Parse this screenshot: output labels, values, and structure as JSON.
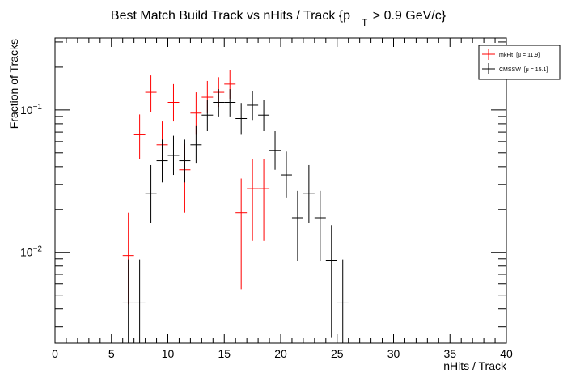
{
  "chart_data": {
    "type": "scatter",
    "title_main": "Best Match Build Track vs nHits / Track {p",
    "title_sub": "T",
    "title_tail": " > 0.9 GeV/c}",
    "xlabel": "nHits / Track",
    "ylabel": "Fraction of Tracks",
    "xlim": [
      0,
      40
    ],
    "ylim": [
      0.0023,
      0.32
    ],
    "log_y": true,
    "grid": false,
    "legend_position": "top-right",
    "x_ticks": [
      0,
      5,
      10,
      15,
      20,
      25,
      30,
      35,
      40
    ],
    "x_tick_labels": [
      "0",
      "5",
      "10",
      "15",
      "20",
      "25",
      "30",
      "35",
      "40"
    ],
    "y_major_ticks": [
      {
        "value": 0.1,
        "base": "10",
        "exp": "−1"
      },
      {
        "value": 0.01,
        "base": "10",
        "exp": "−2"
      }
    ],
    "series": [
      {
        "name": "mkFit",
        "legend_stat": "[μ = 11.9]",
        "color": "#ff0000",
        "points": [
          {
            "x": 6.5,
            "y": 0.0095,
            "lo": 0.0043,
            "hi": 0.019
          },
          {
            "x": 7.5,
            "y": 0.067,
            "lo": 0.045,
            "hi": 0.093
          },
          {
            "x": 8.5,
            "y": 0.133,
            "lo": 0.097,
            "hi": 0.175
          },
          {
            "x": 9.5,
            "y": 0.057,
            "lo": 0.038,
            "hi": 0.083
          },
          {
            "x": 10.5,
            "y": 0.113,
            "lo": 0.083,
            "hi": 0.152
          },
          {
            "x": 11.5,
            "y": 0.038,
            "lo": 0.019,
            "hi": 0.058
          },
          {
            "x": 12.5,
            "y": 0.095,
            "lo": 0.067,
            "hi": 0.133
          },
          {
            "x": 13.5,
            "y": 0.123,
            "lo": 0.095,
            "hi": 0.16
          },
          {
            "x": 14.5,
            "y": 0.133,
            "lo": 0.105,
            "hi": 0.17
          },
          {
            "x": 15.5,
            "y": 0.152,
            "lo": 0.12,
            "hi": 0.19
          },
          {
            "x": 16.5,
            "y": 0.019,
            "lo": 0.0055,
            "hi": 0.033
          },
          {
            "x": 17.5,
            "y": 0.028,
            "lo": 0.012,
            "hi": 0.045
          },
          {
            "x": 18.5,
            "y": 0.028,
            "lo": 0.012,
            "hi": 0.045
          }
        ]
      },
      {
        "name": "CMSSW",
        "legend_stat": "[μ = 15.1]",
        "color": "#000000",
        "points": [
          {
            "x": 6.5,
            "y": 0.0044,
            "lo": 0.0021,
            "hi": 0.0089
          },
          {
            "x": 7.5,
            "y": 0.0044,
            "lo": 0.0021,
            "hi": 0.0089
          },
          {
            "x": 8.5,
            "y": 0.026,
            "lo": 0.016,
            "hi": 0.041
          },
          {
            "x": 9.5,
            "y": 0.044,
            "lo": 0.031,
            "hi": 0.062
          },
          {
            "x": 10.5,
            "y": 0.048,
            "lo": 0.035,
            "hi": 0.066
          },
          {
            "x": 11.5,
            "y": 0.044,
            "lo": 0.031,
            "hi": 0.062
          },
          {
            "x": 12.5,
            "y": 0.057,
            "lo": 0.042,
            "hi": 0.077
          },
          {
            "x": 13.5,
            "y": 0.092,
            "lo": 0.071,
            "hi": 0.118
          },
          {
            "x": 14.5,
            "y": 0.113,
            "lo": 0.09,
            "hi": 0.14
          },
          {
            "x": 15.5,
            "y": 0.113,
            "lo": 0.09,
            "hi": 0.14
          },
          {
            "x": 16.5,
            "y": 0.087,
            "lo": 0.067,
            "hi": 0.112
          },
          {
            "x": 17.5,
            "y": 0.108,
            "lo": 0.085,
            "hi": 0.135
          },
          {
            "x": 18.5,
            "y": 0.092,
            "lo": 0.071,
            "hi": 0.118
          },
          {
            "x": 19.5,
            "y": 0.052,
            "lo": 0.038,
            "hi": 0.071
          },
          {
            "x": 20.5,
            "y": 0.035,
            "lo": 0.024,
            "hi": 0.051
          },
          {
            "x": 21.5,
            "y": 0.0175,
            "lo": 0.0087,
            "hi": 0.027
          },
          {
            "x": 22.5,
            "y": 0.026,
            "lo": 0.016,
            "hi": 0.041
          },
          {
            "x": 23.5,
            "y": 0.0175,
            "lo": 0.0087,
            "hi": 0.027
          },
          {
            "x": 24.5,
            "y": 0.0088,
            "lo": 0.0025,
            "hi": 0.0155
          },
          {
            "x": 25.5,
            "y": 0.0044,
            "lo": 0.0021,
            "hi": 0.0089
          }
        ]
      }
    ]
  }
}
